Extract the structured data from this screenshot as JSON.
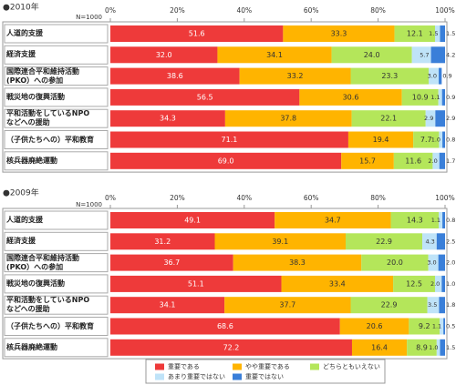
{
  "chart_data": [
    {
      "type": "stacked-barh",
      "title": "●2010年",
      "sample_label": "N=1000",
      "categories": [
        "人道的支援",
        "経済支援",
        "国際連合平和維持活動\n(PKO）への参加",
        "戦災地の復興活動",
        "平和活動をしているNPO\nなどへの援助",
        "（子供たちへの）平和教育",
        "核兵器廃絶運動"
      ],
      "xlim": [
        0,
        100
      ],
      "xticks": [
        {
          "value": 0,
          "label": "0%"
        },
        {
          "value": 20,
          "label": "20%"
        },
        {
          "value": 40,
          "label": "40%"
        },
        {
          "value": 60,
          "label": "60%"
        },
        {
          "value": 80,
          "label": "80%"
        },
        {
          "value": 100,
          "label": "100%"
        }
      ],
      "series": [
        {
          "color": "#ee3a3a",
          "values": [
            51.6,
            32.0,
            38.6,
            56.5,
            34.3,
            71.1,
            69.0
          ],
          "value_labels": [
            "51.6",
            "32.0",
            "38.6",
            "56.5",
            "34.3",
            "71.1",
            "69.0"
          ]
        },
        {
          "color": "#ffb400",
          "values": [
            33.3,
            34.1,
            33.2,
            30.6,
            37.8,
            19.4,
            15.7
          ],
          "value_labels": [
            "33.3",
            "34.1",
            "33.2",
            "30.6",
            "37.8",
            "19.4",
            "15.7"
          ]
        },
        {
          "color": "#b4e65a",
          "values": [
            12.1,
            24.0,
            23.3,
            10.9,
            22.1,
            7.7,
            11.6
          ],
          "value_labels": [
            "12.1",
            "24.0",
            "23.3",
            "10.9",
            "22.1",
            "7.7",
            "11.6"
          ]
        },
        {
          "color": "#bfe3f8",
          "values": [
            1.5,
            5.7,
            3.0,
            1.1,
            2.9,
            1.0,
            2.0
          ],
          "value_labels": [
            "1.5",
            "5.7",
            "3.0",
            "1.1",
            "2.9",
            "1.0",
            "2.0"
          ]
        },
        {
          "color": "#3a7fd9",
          "values": [
            1.5,
            4.2,
            0.9,
            0.9,
            2.9,
            0.8,
            1.7
          ],
          "value_labels": [
            "1.5",
            "4.2",
            "0.9",
            "0.9",
            "2.9",
            "0.8",
            "1.7"
          ]
        }
      ]
    },
    {
      "type": "stacked-barh",
      "title": "●2009年",
      "sample_label": "N=1000",
      "categories": [
        "人道的支援",
        "経済支援",
        "国際連合平和維持活動\n(PKO）への参加",
        "戦災地の復興活動",
        "平和活動をしているNPO\nなどへの援助",
        "（子供たちへの）平和教育",
        "核兵器廃絶運動"
      ],
      "xlim": [
        0,
        100
      ],
      "xticks": [
        {
          "value": 0,
          "label": "0%"
        },
        {
          "value": 20,
          "label": "20%"
        },
        {
          "value": 40,
          "label": "40%"
        },
        {
          "value": 60,
          "label": "60%"
        },
        {
          "value": 80,
          "label": "80%"
        },
        {
          "value": 100,
          "label": "100%"
        }
      ],
      "series": [
        {
          "name": "重要である",
          "color": "#ee3a3a",
          "values": [
            49.1,
            31.2,
            36.7,
            51.1,
            34.1,
            68.6,
            72.2
          ],
          "value_labels": [
            "49.1",
            "31.2",
            "36.7",
            "51.1",
            "34.1",
            "68.6",
            "72.2"
          ]
        },
        {
          "name": "やや重要である",
          "color": "#ffb400",
          "values": [
            34.7,
            39.1,
            38.3,
            33.4,
            37.7,
            20.6,
            16.4
          ],
          "value_labels": [
            "34.7",
            "39.1",
            "38.3",
            "33.4",
            "37.7",
            "20.6",
            "16.4"
          ]
        },
        {
          "name": "どちらともいえない",
          "color": "#b4e65a",
          "values": [
            14.3,
            22.9,
            20.0,
            12.5,
            22.9,
            9.2,
            8.9
          ],
          "value_labels": [
            "14.3",
            "22.9",
            "20.0",
            "12.5",
            "22.9",
            "9.2",
            "8.9"
          ]
        },
        {
          "name": "あまり重要ではない",
          "color": "#bfe3f8",
          "values": [
            1.1,
            4.3,
            3.0,
            2.0,
            3.5,
            1.1,
            1.0
          ],
          "value_labels": [
            "1.1",
            "4.3",
            "3.0",
            "2.0",
            "3.5",
            "1.1",
            "1.0"
          ]
        },
        {
          "name": "重要ではない",
          "color": "#3a7fd9",
          "values": [
            0.8,
            2.5,
            2.0,
            1.0,
            1.8,
            0.5,
            1.5
          ],
          "value_labels": [
            "0.8",
            "2.5",
            "2.0",
            "1.0",
            "1.8",
            "0.5",
            "1.5"
          ]
        }
      ]
    }
  ]
}
